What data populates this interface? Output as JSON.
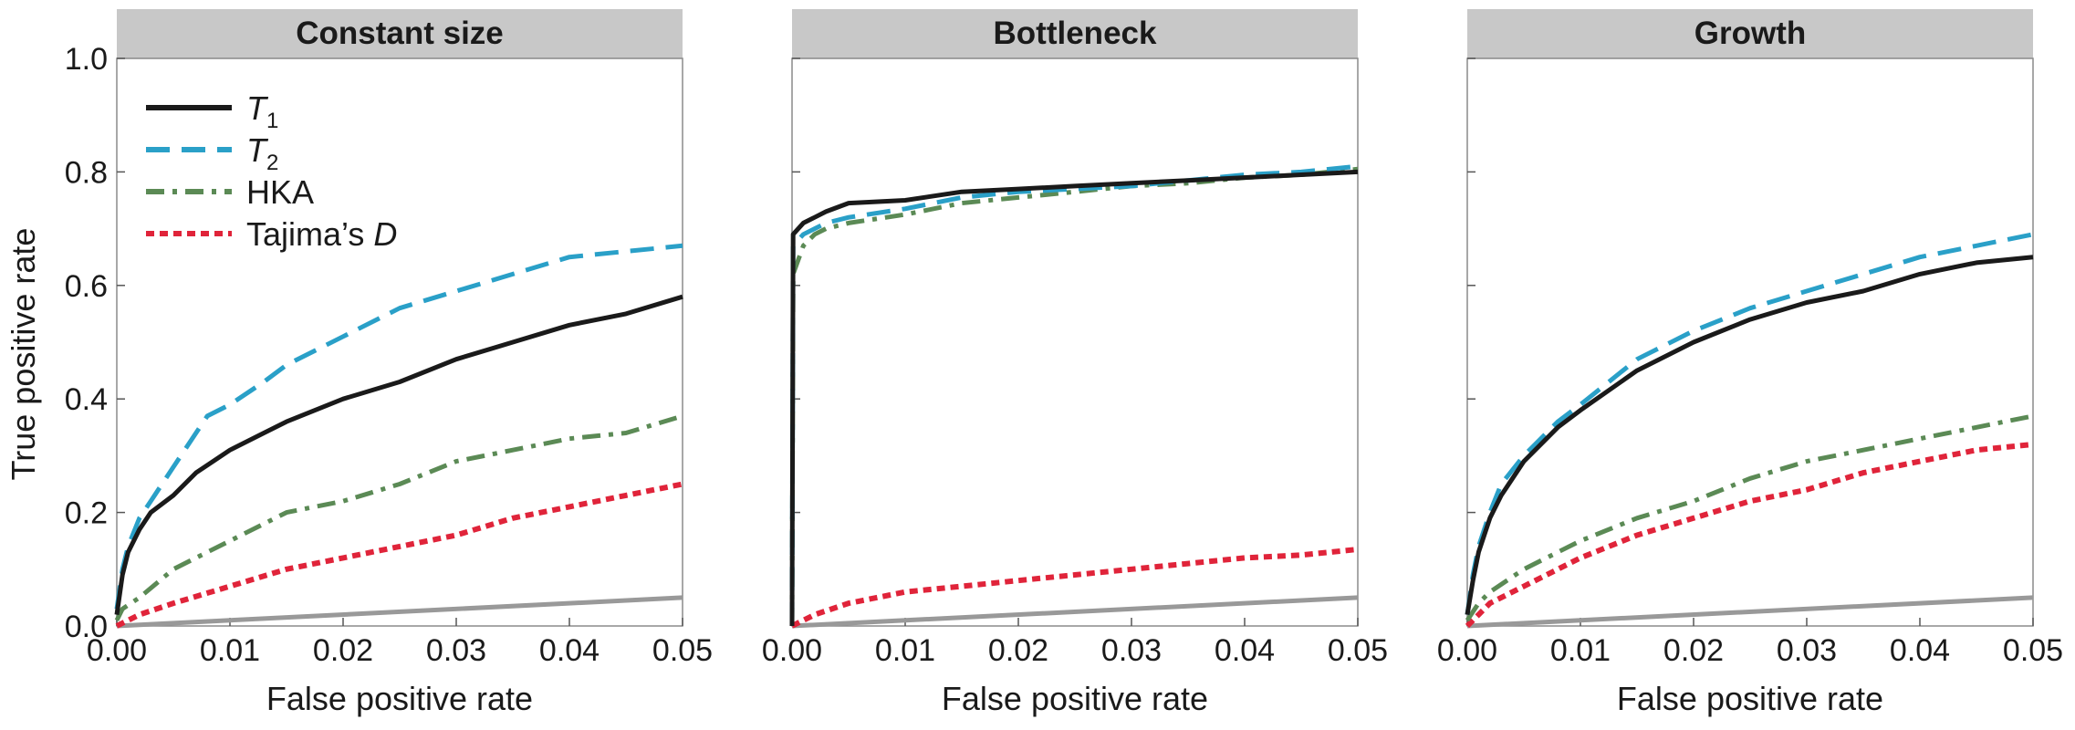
{
  "chart_data": {
    "type": "line",
    "ylabel": "True positive rate",
    "xlim": [
      0,
      0.05
    ],
    "ylim": [
      0,
      1.0
    ],
    "x_ticks": [
      "0.00",
      "0.01",
      "0.02",
      "0.03",
      "0.04",
      "0.05"
    ],
    "y_ticks": [
      "0.0",
      "0.2",
      "0.4",
      "0.6",
      "0.8",
      "1.0"
    ],
    "grid": false,
    "legend": {
      "placement": "top-left of first panel",
      "entries": [
        {
          "label_main": "T",
          "label_sub": "1"
        },
        {
          "label_main": "T",
          "label_sub": "2"
        },
        {
          "label_main": "HKA",
          "label_sub": ""
        },
        {
          "label_main": "Tajima’s ",
          "label_italic": "D"
        }
      ]
    },
    "series_styles": [
      {
        "key": "T1",
        "color": "#1a1a1a",
        "dash": "solid"
      },
      {
        "key": "T2",
        "color": "#2aa0c8",
        "dash": "dashed"
      },
      {
        "key": "HKA",
        "color": "#5b8a55",
        "dash": "dash-dot"
      },
      {
        "key": "TajimaD",
        "color": "#e0243a",
        "dash": "dotted"
      },
      {
        "key": "diagonal",
        "color": "#999999",
        "dash": "solid"
      }
    ],
    "panels": [
      {
        "title": "Constant size",
        "xlabel": "False positive rate",
        "series": {
          "T1": [
            [
              0,
              0.02
            ],
            [
              0.0005,
              0.09
            ],
            [
              0.001,
              0.13
            ],
            [
              0.002,
              0.17
            ],
            [
              0.003,
              0.2
            ],
            [
              0.005,
              0.23
            ],
            [
              0.007,
              0.27
            ],
            [
              0.01,
              0.31
            ],
            [
              0.013,
              0.34
            ],
            [
              0.015,
              0.36
            ],
            [
              0.02,
              0.4
            ],
            [
              0.025,
              0.43
            ],
            [
              0.03,
              0.47
            ],
            [
              0.035,
              0.5
            ],
            [
              0.04,
              0.53
            ],
            [
              0.045,
              0.55
            ],
            [
              0.05,
              0.58
            ]
          ],
          "T2": [
            [
              0,
              0.03
            ],
            [
              0.0005,
              0.1
            ],
            [
              0.001,
              0.14
            ],
            [
              0.002,
              0.19
            ],
            [
              0.003,
              0.22
            ],
            [
              0.005,
              0.28
            ],
            [
              0.007,
              0.34
            ],
            [
              0.008,
              0.37
            ],
            [
              0.01,
              0.39
            ],
            [
              0.013,
              0.43
            ],
            [
              0.015,
              0.46
            ],
            [
              0.02,
              0.51
            ],
            [
              0.025,
              0.56
            ],
            [
              0.03,
              0.59
            ],
            [
              0.035,
              0.62
            ],
            [
              0.04,
              0.65
            ],
            [
              0.045,
              0.66
            ],
            [
              0.05,
              0.67
            ]
          ],
          "HKA": [
            [
              0,
              0.01
            ],
            [
              0.0005,
              0.03
            ],
            [
              0.002,
              0.05
            ],
            [
              0.005,
              0.1
            ],
            [
              0.008,
              0.13
            ],
            [
              0.01,
              0.15
            ],
            [
              0.015,
              0.2
            ],
            [
              0.02,
              0.22
            ],
            [
              0.025,
              0.25
            ],
            [
              0.03,
              0.29
            ],
            [
              0.035,
              0.31
            ],
            [
              0.04,
              0.33
            ],
            [
              0.045,
              0.34
            ],
            [
              0.05,
              0.37
            ]
          ],
          "TajimaD": [
            [
              0,
              0
            ],
            [
              0.002,
              0.02
            ],
            [
              0.005,
              0.04
            ],
            [
              0.01,
              0.07
            ],
            [
              0.015,
              0.1
            ],
            [
              0.02,
              0.12
            ],
            [
              0.025,
              0.14
            ],
            [
              0.03,
              0.16
            ],
            [
              0.035,
              0.19
            ],
            [
              0.04,
              0.21
            ],
            [
              0.045,
              0.23
            ],
            [
              0.05,
              0.25
            ]
          ],
          "diagonal": [
            [
              0,
              0
            ],
            [
              0.05,
              0.05
            ]
          ]
        }
      },
      {
        "title": "Bottleneck",
        "xlabel": "False positive rate",
        "series": {
          "T1": [
            [
              0,
              0
            ],
            [
              0.0001,
              0.69
            ],
            [
              0.001,
              0.71
            ],
            [
              0.002,
              0.72
            ],
            [
              0.003,
              0.73
            ],
            [
              0.005,
              0.745
            ],
            [
              0.01,
              0.75
            ],
            [
              0.015,
              0.765
            ],
            [
              0.02,
              0.77
            ],
            [
              0.025,
              0.775
            ],
            [
              0.03,
              0.78
            ],
            [
              0.035,
              0.785
            ],
            [
              0.04,
              0.79
            ],
            [
              0.045,
              0.795
            ],
            [
              0.05,
              0.8
            ]
          ],
          "T2": [
            [
              0,
              0
            ],
            [
              0.0001,
              0.67
            ],
            [
              0.001,
              0.69
            ],
            [
              0.002,
              0.7
            ],
            [
              0.003,
              0.71
            ],
            [
              0.005,
              0.72
            ],
            [
              0.01,
              0.735
            ],
            [
              0.015,
              0.755
            ],
            [
              0.02,
              0.765
            ],
            [
              0.025,
              0.77
            ],
            [
              0.03,
              0.775
            ],
            [
              0.035,
              0.785
            ],
            [
              0.04,
              0.795
            ],
            [
              0.045,
              0.8
            ],
            [
              0.05,
              0.81
            ]
          ],
          "HKA": [
            [
              0,
              0
            ],
            [
              0.0001,
              0.62
            ],
            [
              0.001,
              0.67
            ],
            [
              0.002,
              0.69
            ],
            [
              0.003,
              0.7
            ],
            [
              0.005,
              0.71
            ],
            [
              0.01,
              0.725
            ],
            [
              0.015,
              0.745
            ],
            [
              0.02,
              0.755
            ],
            [
              0.025,
              0.765
            ],
            [
              0.03,
              0.775
            ],
            [
              0.035,
              0.78
            ],
            [
              0.04,
              0.79
            ],
            [
              0.045,
              0.795
            ],
            [
              0.05,
              0.805
            ]
          ],
          "TajimaD": [
            [
              0,
              0
            ],
            [
              0.002,
              0.02
            ],
            [
              0.005,
              0.04
            ],
            [
              0.01,
              0.06
            ],
            [
              0.015,
              0.07
            ],
            [
              0.02,
              0.08
            ],
            [
              0.025,
              0.09
            ],
            [
              0.03,
              0.1
            ],
            [
              0.035,
              0.11
            ],
            [
              0.04,
              0.12
            ],
            [
              0.045,
              0.125
            ],
            [
              0.05,
              0.135
            ]
          ],
          "diagonal": [
            [
              0,
              0
            ],
            [
              0.05,
              0.05
            ]
          ]
        }
      },
      {
        "title": "Growth",
        "xlabel": "False positive rate",
        "series": {
          "T1": [
            [
              0,
              0.02
            ],
            [
              0.0005,
              0.08
            ],
            [
              0.001,
              0.13
            ],
            [
              0.002,
              0.19
            ],
            [
              0.003,
              0.23
            ],
            [
              0.005,
              0.29
            ],
            [
              0.008,
              0.35
            ],
            [
              0.01,
              0.38
            ],
            [
              0.015,
              0.45
            ],
            [
              0.02,
              0.5
            ],
            [
              0.025,
              0.54
            ],
            [
              0.03,
              0.57
            ],
            [
              0.035,
              0.59
            ],
            [
              0.04,
              0.62
            ],
            [
              0.045,
              0.64
            ],
            [
              0.05,
              0.65
            ]
          ],
          "T2": [
            [
              0,
              0.02
            ],
            [
              0.0005,
              0.09
            ],
            [
              0.001,
              0.14
            ],
            [
              0.002,
              0.2
            ],
            [
              0.003,
              0.25
            ],
            [
              0.005,
              0.3
            ],
            [
              0.008,
              0.36
            ],
            [
              0.01,
              0.39
            ],
            [
              0.015,
              0.47
            ],
            [
              0.02,
              0.52
            ],
            [
              0.025,
              0.56
            ],
            [
              0.03,
              0.59
            ],
            [
              0.035,
              0.62
            ],
            [
              0.04,
              0.65
            ],
            [
              0.045,
              0.67
            ],
            [
              0.05,
              0.69
            ]
          ],
          "HKA": [
            [
              0,
              0.01
            ],
            [
              0.001,
              0.04
            ],
            [
              0.002,
              0.06
            ],
            [
              0.005,
              0.1
            ],
            [
              0.008,
              0.13
            ],
            [
              0.01,
              0.15
            ],
            [
              0.015,
              0.19
            ],
            [
              0.02,
              0.22
            ],
            [
              0.025,
              0.26
            ],
            [
              0.03,
              0.29
            ],
            [
              0.035,
              0.31
            ],
            [
              0.04,
              0.33
            ],
            [
              0.045,
              0.35
            ],
            [
              0.05,
              0.37
            ]
          ],
          "TajimaD": [
            [
              0,
              0
            ],
            [
              0.001,
              0.02
            ],
            [
              0.002,
              0.04
            ],
            [
              0.005,
              0.07
            ],
            [
              0.008,
              0.1
            ],
            [
              0.01,
              0.12
            ],
            [
              0.015,
              0.16
            ],
            [
              0.02,
              0.19
            ],
            [
              0.025,
              0.22
            ],
            [
              0.03,
              0.24
            ],
            [
              0.035,
              0.27
            ],
            [
              0.04,
              0.29
            ],
            [
              0.045,
              0.31
            ],
            [
              0.05,
              0.32
            ]
          ],
          "diagonal": [
            [
              0,
              0
            ],
            [
              0.05,
              0.05
            ]
          ]
        }
      }
    ]
  }
}
